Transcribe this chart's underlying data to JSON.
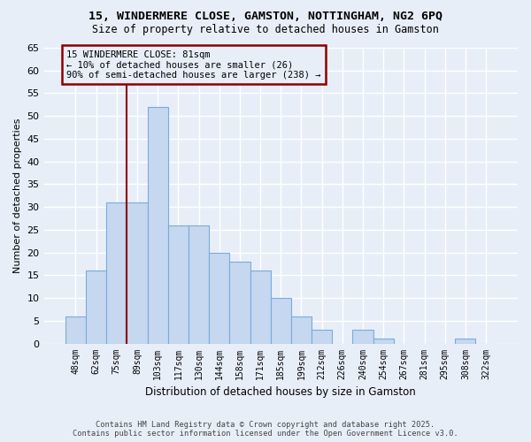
{
  "title": "15, WINDERMERE CLOSE, GAMSTON, NOTTINGHAM, NG2 6PQ",
  "subtitle": "Size of property relative to detached houses in Gamston",
  "xlabel": "Distribution of detached houses by size in Gamston",
  "ylabel": "Number of detached properties",
  "categories": [
    "48sqm",
    "62sqm",
    "75sqm",
    "89sqm",
    "103sqm",
    "117sqm",
    "130sqm",
    "144sqm",
    "158sqm",
    "171sqm",
    "185sqm",
    "199sqm",
    "212sqm",
    "226sqm",
    "240sqm",
    "254sqm",
    "267sqm",
    "281sqm",
    "295sqm",
    "308sqm",
    "322sqm"
  ],
  "values": [
    6,
    16,
    31,
    31,
    52,
    26,
    26,
    20,
    18,
    16,
    10,
    6,
    3,
    0,
    3,
    1,
    0,
    0,
    0,
    1,
    0
  ],
  "bar_color": "#c5d8f0",
  "bar_edge_color": "#7aabdb",
  "vline_color": "#8B0000",
  "vline_x": 2.5,
  "annotation_text": "15 WINDERMERE CLOSE: 81sqm\n← 10% of detached houses are smaller (26)\n90% of semi-detached houses are larger (238) →",
  "annotation_box_color": "#8B0000",
  "ylim": [
    0,
    65
  ],
  "yticks": [
    0,
    5,
    10,
    15,
    20,
    25,
    30,
    35,
    40,
    45,
    50,
    55,
    60,
    65
  ],
  "background_color": "#e8eef8",
  "grid_color": "#ffffff",
  "footer_line1": "Contains HM Land Registry data © Crown copyright and database right 2025.",
  "footer_line2": "Contains public sector information licensed under the Open Government Licence v3.0."
}
